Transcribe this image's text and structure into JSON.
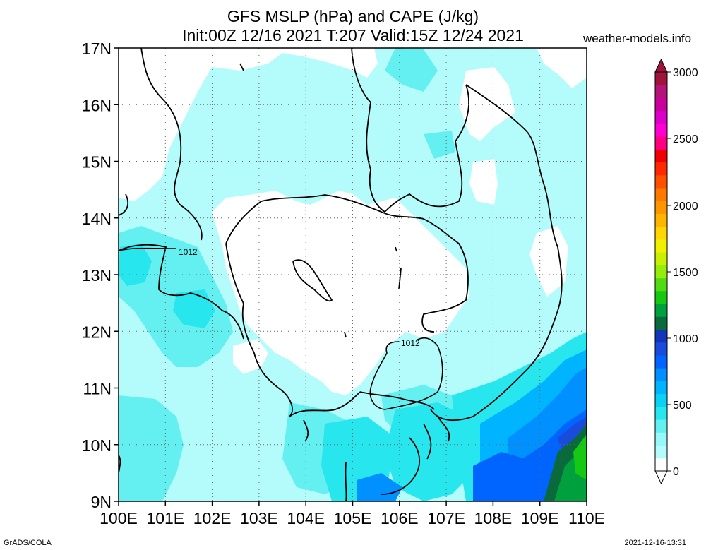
{
  "title": {
    "line1": "GFS MSLP (hPa) and CAPE (J/kg)",
    "line2": "Init:00Z 12/16 2021 T:207 Valid:15Z 12/24 2021"
  },
  "site": "weather-models.info",
  "lat_labels": [
    "17N",
    "16N",
    "15N",
    "14N",
    "13N",
    "12N",
    "11N",
    "10N",
    "9N"
  ],
  "lon_labels": [
    "100E",
    "101E",
    "102E",
    "103E",
    "104E",
    "105E",
    "106E",
    "107E",
    "108E",
    "109E",
    "110E"
  ],
  "isobar_labels": [
    "1012",
    "1012"
  ],
  "colorbar": {
    "labels": [
      "3000",
      "2500",
      "2000",
      "1500",
      "1000",
      "500",
      "0"
    ],
    "colors": [
      "#fdfdfd",
      "#b4fcfc",
      "#96f8f8",
      "#64f0f0",
      "#28e6ee",
      "#0ad2f5",
      "#00b4ff",
      "#0090ff",
      "#0064ff",
      "#1a4cdc",
      "#1236b8",
      "#0a6a3c",
      "#00a03c",
      "#14c814",
      "#50dc14",
      "#96ec0a",
      "#c8f000",
      "#f0f000",
      "#ffd700",
      "#ffb400",
      "#ff9600",
      "#ff7800",
      "#ff5000",
      "#ff2800",
      "#f00000",
      "#ff0080",
      "#ff00d0",
      "#dc00c8",
      "#c8009c",
      "#b41478",
      "#a0143c"
    ]
  },
  "footer": {
    "left": "GrADS/COLA",
    "right": "2021-12-16-13:31"
  },
  "colors": {
    "land": "#ffffff",
    "cape_low": "#b4fcfc",
    "cape_mid": "#64f0f0",
    "grid": "#555555"
  }
}
